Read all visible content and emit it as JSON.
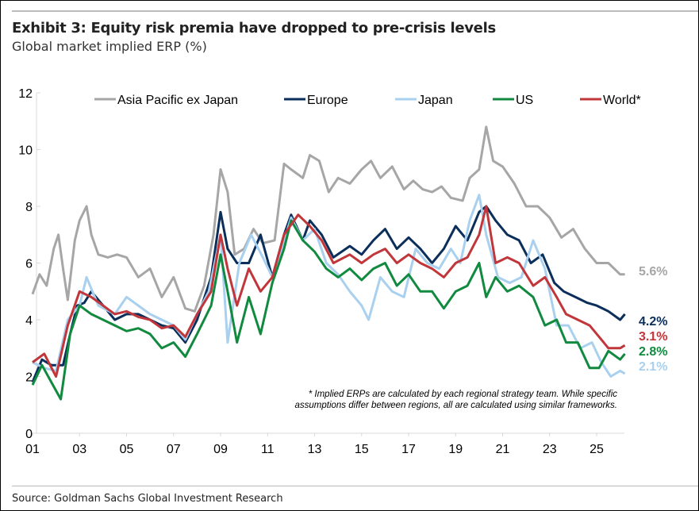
{
  "header": {
    "title": "Exhibit 3: Equity risk premia have dropped to pre-crisis levels",
    "subtitle": "Global market implied ERP (%)"
  },
  "footer": {
    "source": "Source: Goldman Sachs Global Investment Research"
  },
  "chart_data": {
    "type": "line",
    "title": "Exhibit 3: Equity risk premia have dropped to pre-crisis levels",
    "ylabel": "Global market implied ERP (%)",
    "ylim": [
      0,
      12
    ],
    "yticks": [
      "0",
      "2",
      "4",
      "6",
      "8",
      "10",
      "12"
    ],
    "xlim": [
      2001,
      2026.2
    ],
    "xticks": [
      "01",
      "03",
      "05",
      "07",
      "09",
      "11",
      "13",
      "15",
      "17",
      "19",
      "21",
      "23",
      "25"
    ],
    "legend_position": "top",
    "footnote": [
      "* Implied ERPs are calculated by each regional strategy team. While specific",
      "assumptions differ between regions, all are calculated using similar frameworks."
    ],
    "series": [
      {
        "name": "Asia Pacific ex Japan",
        "color": "#a6a6a6",
        "end_label": "5.6%",
        "points": [
          [
            2001,
            4.9
          ],
          [
            2001.3,
            5.6
          ],
          [
            2001.6,
            5.2
          ],
          [
            2001.9,
            6.5
          ],
          [
            2002.1,
            7.0
          ],
          [
            2002.3,
            5.8
          ],
          [
            2002.5,
            4.7
          ],
          [
            2002.8,
            6.8
          ],
          [
            2003.0,
            7.5
          ],
          [
            2003.3,
            8.0
          ],
          [
            2003.5,
            7.0
          ],
          [
            2003.8,
            6.3
          ],
          [
            2004.2,
            6.2
          ],
          [
            2004.6,
            6.3
          ],
          [
            2005.0,
            6.2
          ],
          [
            2005.5,
            5.5
          ],
          [
            2006.0,
            5.8
          ],
          [
            2006.5,
            4.8
          ],
          [
            2007.0,
            5.5
          ],
          [
            2007.5,
            4.4
          ],
          [
            2007.9,
            4.3
          ],
          [
            2008.3,
            5.2
          ],
          [
            2008.7,
            7.0
          ],
          [
            2009.0,
            9.3
          ],
          [
            2009.3,
            8.5
          ],
          [
            2009.6,
            6.3
          ],
          [
            2010.0,
            6.5
          ],
          [
            2010.4,
            7.2
          ],
          [
            2010.8,
            6.7
          ],
          [
            2011.3,
            6.8
          ],
          [
            2011.7,
            9.5
          ],
          [
            2012.0,
            9.3
          ],
          [
            2012.5,
            9.0
          ],
          [
            2012.8,
            9.8
          ],
          [
            2013.2,
            9.6
          ],
          [
            2013.6,
            8.5
          ],
          [
            2014.0,
            9.0
          ],
          [
            2014.5,
            8.8
          ],
          [
            2015.0,
            9.3
          ],
          [
            2015.4,
            9.6
          ],
          [
            2015.8,
            9.0
          ],
          [
            2016.3,
            9.4
          ],
          [
            2016.8,
            8.6
          ],
          [
            2017.2,
            8.9
          ],
          [
            2017.6,
            8.6
          ],
          [
            2018.0,
            8.5
          ],
          [
            2018.4,
            8.7
          ],
          [
            2018.8,
            8.3
          ],
          [
            2019.3,
            8.2
          ],
          [
            2019.6,
            9.0
          ],
          [
            2020.0,
            9.3
          ],
          [
            2020.3,
            10.8
          ],
          [
            2020.6,
            9.6
          ],
          [
            2021.0,
            9.4
          ],
          [
            2021.5,
            8.8
          ],
          [
            2022.0,
            8.0
          ],
          [
            2022.5,
            8.0
          ],
          [
            2023.0,
            7.6
          ],
          [
            2023.5,
            6.9
          ],
          [
            2024.0,
            7.2
          ],
          [
            2024.5,
            6.5
          ],
          [
            2025.0,
            6.0
          ],
          [
            2025.5,
            6.0
          ],
          [
            2026.0,
            5.6
          ],
          [
            2026.2,
            5.6
          ]
        ]
      },
      {
        "name": "Europe",
        "color": "#0b2f5a",
        "end_label": "4.2%",
        "points": [
          [
            2001,
            1.8
          ],
          [
            2001.4,
            2.6
          ],
          [
            2001.8,
            2.4
          ],
          [
            2002.3,
            2.4
          ],
          [
            2002.6,
            3.5
          ],
          [
            2002.9,
            4.5
          ],
          [
            2003.2,
            4.6
          ],
          [
            2003.5,
            5.0
          ],
          [
            2004.0,
            4.5
          ],
          [
            2004.5,
            4.0
          ],
          [
            2005.0,
            4.2
          ],
          [
            2005.5,
            4.2
          ],
          [
            2006.0,
            4.0
          ],
          [
            2006.5,
            3.8
          ],
          [
            2007.0,
            3.7
          ],
          [
            2007.5,
            3.2
          ],
          [
            2008.0,
            4.0
          ],
          [
            2008.6,
            5.5
          ],
          [
            2009.0,
            7.8
          ],
          [
            2009.3,
            6.5
          ],
          [
            2009.7,
            6.0
          ],
          [
            2010.2,
            6.0
          ],
          [
            2010.7,
            7.0
          ],
          [
            2011.2,
            5.5
          ],
          [
            2011.7,
            7.0
          ],
          [
            2012.0,
            7.7
          ],
          [
            2012.5,
            6.8
          ],
          [
            2012.8,
            7.5
          ],
          [
            2013.3,
            7.0
          ],
          [
            2013.8,
            6.2
          ],
          [
            2014.5,
            6.6
          ],
          [
            2015.0,
            6.3
          ],
          [
            2015.5,
            6.8
          ],
          [
            2016.0,
            7.2
          ],
          [
            2016.5,
            6.5
          ],
          [
            2017.0,
            6.9
          ],
          [
            2017.5,
            6.5
          ],
          [
            2018.0,
            6.0
          ],
          [
            2018.5,
            6.5
          ],
          [
            2019.0,
            7.3
          ],
          [
            2019.5,
            6.8
          ],
          [
            2020.0,
            7.8
          ],
          [
            2020.3,
            8.0
          ],
          [
            2020.7,
            7.5
          ],
          [
            2021.2,
            7.0
          ],
          [
            2021.7,
            6.8
          ],
          [
            2022.2,
            6.0
          ],
          [
            2022.7,
            6.3
          ],
          [
            2023.2,
            5.3
          ],
          [
            2023.6,
            5.0
          ],
          [
            2024.1,
            4.8
          ],
          [
            2024.6,
            4.6
          ],
          [
            2025.0,
            4.5
          ],
          [
            2025.5,
            4.3
          ],
          [
            2026.0,
            4.0
          ],
          [
            2026.2,
            4.2
          ]
        ]
      },
      {
        "name": "Japan",
        "color": "#a9d0ee",
        "end_label": "2.1%",
        "points": [
          [
            2001,
            2.5
          ],
          [
            2001.5,
            2.3
          ],
          [
            2002.0,
            2.2
          ],
          [
            2002.5,
            4.0
          ],
          [
            2003.0,
            4.5
          ],
          [
            2003.3,
            5.5
          ],
          [
            2003.8,
            4.5
          ],
          [
            2004.5,
            4.2
          ],
          [
            2005.0,
            4.8
          ],
          [
            2005.5,
            4.5
          ],
          [
            2006.0,
            4.2
          ],
          [
            2006.5,
            4.0
          ],
          [
            2007.0,
            3.8
          ],
          [
            2007.5,
            3.3
          ],
          [
            2008.0,
            4.2
          ],
          [
            2008.5,
            5.0
          ],
          [
            2009.0,
            7.0
          ],
          [
            2009.3,
            3.2
          ],
          [
            2009.8,
            6.0
          ],
          [
            2010.3,
            7.0
          ],
          [
            2010.8,
            6.2
          ],
          [
            2011.2,
            5.5
          ],
          [
            2011.6,
            6.5
          ],
          [
            2012.0,
            7.6
          ],
          [
            2012.5,
            6.8
          ],
          [
            2013.0,
            7.2
          ],
          [
            2013.5,
            6.0
          ],
          [
            2014.0,
            5.6
          ],
          [
            2014.5,
            5.0
          ],
          [
            2015.0,
            4.5
          ],
          [
            2015.3,
            4.0
          ],
          [
            2015.8,
            5.5
          ],
          [
            2016.3,
            5.0
          ],
          [
            2016.8,
            4.8
          ],
          [
            2017.3,
            6.5
          ],
          [
            2017.8,
            6.0
          ],
          [
            2018.3,
            5.8
          ],
          [
            2018.8,
            6.5
          ],
          [
            2019.2,
            6.0
          ],
          [
            2019.6,
            7.5
          ],
          [
            2020.0,
            8.4
          ],
          [
            2020.3,
            7.0
          ],
          [
            2020.8,
            5.5
          ],
          [
            2021.3,
            5.3
          ],
          [
            2021.8,
            5.5
          ],
          [
            2022.3,
            6.8
          ],
          [
            2022.8,
            5.8
          ],
          [
            2023.3,
            3.8
          ],
          [
            2023.8,
            3.8
          ],
          [
            2024.3,
            3.0
          ],
          [
            2024.8,
            3.2
          ],
          [
            2025.2,
            2.5
          ],
          [
            2025.6,
            2.0
          ],
          [
            2026.0,
            2.2
          ],
          [
            2026.2,
            2.1
          ]
        ]
      },
      {
        "name": "US",
        "color": "#118a3f",
        "end_label": "2.8%",
        "points": [
          [
            2001,
            1.7
          ],
          [
            2001.4,
            2.4
          ],
          [
            2001.8,
            1.8
          ],
          [
            2002.2,
            1.2
          ],
          [
            2002.6,
            3.5
          ],
          [
            2003.0,
            4.5
          ],
          [
            2003.5,
            4.2
          ],
          [
            2004.0,
            4.0
          ],
          [
            2004.5,
            3.8
          ],
          [
            2005.0,
            3.6
          ],
          [
            2005.5,
            3.7
          ],
          [
            2006.0,
            3.5
          ],
          [
            2006.5,
            3.0
          ],
          [
            2007.0,
            3.2
          ],
          [
            2007.5,
            2.7
          ],
          [
            2008.0,
            3.5
          ],
          [
            2008.6,
            4.5
          ],
          [
            2009.0,
            6.3
          ],
          [
            2009.3,
            5.0
          ],
          [
            2009.7,
            3.2
          ],
          [
            2010.2,
            4.8
          ],
          [
            2010.7,
            3.5
          ],
          [
            2011.2,
            5.3
          ],
          [
            2011.7,
            6.5
          ],
          [
            2012.0,
            7.5
          ],
          [
            2012.5,
            6.8
          ],
          [
            2013.0,
            6.4
          ],
          [
            2013.5,
            5.8
          ],
          [
            2014.0,
            5.5
          ],
          [
            2014.5,
            5.8
          ],
          [
            2015.0,
            5.4
          ],
          [
            2015.5,
            5.8
          ],
          [
            2016.0,
            6.0
          ],
          [
            2016.5,
            5.2
          ],
          [
            2017.0,
            5.6
          ],
          [
            2017.5,
            5.0
          ],
          [
            2018.0,
            5.0
          ],
          [
            2018.5,
            4.4
          ],
          [
            2019.0,
            5.0
          ],
          [
            2019.5,
            5.2
          ],
          [
            2020.0,
            6.0
          ],
          [
            2020.3,
            4.8
          ],
          [
            2020.7,
            5.5
          ],
          [
            2021.2,
            5.0
          ],
          [
            2021.7,
            5.2
          ],
          [
            2022.3,
            4.8
          ],
          [
            2022.8,
            3.8
          ],
          [
            2023.3,
            4.0
          ],
          [
            2023.7,
            3.2
          ],
          [
            2024.2,
            3.2
          ],
          [
            2024.7,
            2.3
          ],
          [
            2025.1,
            2.3
          ],
          [
            2025.5,
            2.9
          ],
          [
            2026.0,
            2.6
          ],
          [
            2026.2,
            2.8
          ]
        ]
      },
      {
        "name": "World*",
        "color": "#c0363a",
        "end_label": "3.1%",
        "points": [
          [
            2001,
            2.5
          ],
          [
            2001.5,
            2.8
          ],
          [
            2002.0,
            2.0
          ],
          [
            2002.5,
            3.8
          ],
          [
            2003.0,
            5.0
          ],
          [
            2003.5,
            4.8
          ],
          [
            2004.0,
            4.5
          ],
          [
            2004.5,
            4.2
          ],
          [
            2005.0,
            4.3
          ],
          [
            2005.5,
            4.1
          ],
          [
            2006.0,
            4.0
          ],
          [
            2006.5,
            3.7
          ],
          [
            2007.0,
            3.8
          ],
          [
            2007.5,
            3.4
          ],
          [
            2008.0,
            4.2
          ],
          [
            2008.6,
            5.0
          ],
          [
            2009.0,
            7.0
          ],
          [
            2009.3,
            5.8
          ],
          [
            2009.7,
            4.5
          ],
          [
            2010.2,
            5.8
          ],
          [
            2010.7,
            5.0
          ],
          [
            2011.2,
            5.5
          ],
          [
            2011.7,
            7.0
          ],
          [
            2012.3,
            7.7
          ],
          [
            2012.8,
            7.3
          ],
          [
            2013.3,
            6.8
          ],
          [
            2013.8,
            6.0
          ],
          [
            2014.5,
            6.3
          ],
          [
            2015.0,
            6.0
          ],
          [
            2015.5,
            6.3
          ],
          [
            2016.0,
            6.5
          ],
          [
            2016.5,
            6.0
          ],
          [
            2017.0,
            6.3
          ],
          [
            2017.5,
            6.0
          ],
          [
            2018.0,
            5.8
          ],
          [
            2018.5,
            5.5
          ],
          [
            2019.0,
            6.0
          ],
          [
            2019.5,
            6.2
          ],
          [
            2020.0,
            7.0
          ],
          [
            2020.3,
            8.0
          ],
          [
            2020.7,
            6.0
          ],
          [
            2021.2,
            6.2
          ],
          [
            2021.7,
            6.0
          ],
          [
            2022.3,
            5.2
          ],
          [
            2022.8,
            5.5
          ],
          [
            2023.3,
            4.8
          ],
          [
            2023.7,
            4.2
          ],
          [
            2024.2,
            4.0
          ],
          [
            2024.7,
            3.8
          ],
          [
            2025.1,
            3.4
          ],
          [
            2025.5,
            3.0
          ],
          [
            2026.0,
            3.0
          ],
          [
            2026.2,
            3.1
          ]
        ]
      }
    ]
  }
}
